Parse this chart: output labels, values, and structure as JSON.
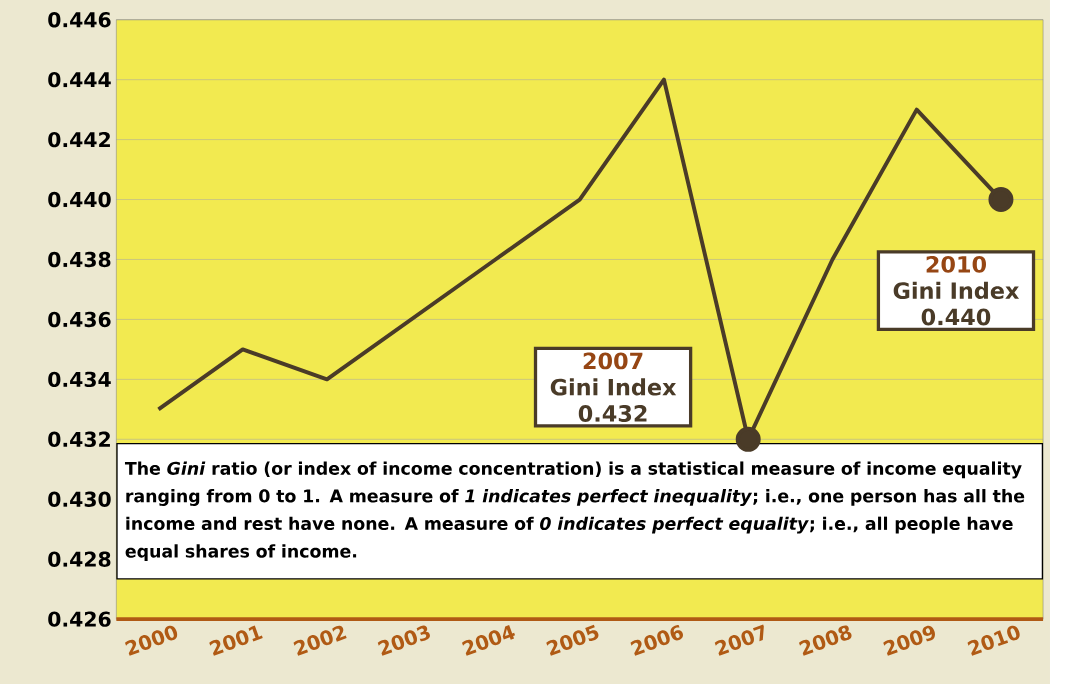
{
  "chart_data": {
    "type": "line",
    "categories": [
      "2000",
      "2001",
      "2002",
      "2003",
      "2004",
      "2005",
      "2006",
      "2007",
      "2008",
      "2009",
      "2010"
    ],
    "series": [
      {
        "color": "#4a3b28",
        "values": [
          0.433,
          0.435,
          0.434,
          0.436,
          0.438,
          0.44,
          0.444,
          0.432,
          0.438,
          0.443,
          0.44
        ]
      },
      {
        "type": "scatter",
        "color": "#4a3b28",
        "values": [
          null,
          null,
          null,
          null,
          null,
          null,
          null,
          0.432,
          null,
          null,
          0.44
        ]
      }
    ],
    "ylim": [
      0.426,
      0.446
    ],
    "yticks": [
      {
        "value": 0.426,
        "label": "0.426"
      },
      {
        "value": 0.428,
        "label": "0.428"
      },
      {
        "value": 0.43,
        "label": "0.430"
      },
      {
        "value": 0.432,
        "label": "0.432"
      },
      {
        "value": 0.434,
        "label": "0.434"
      },
      {
        "value": 0.436,
        "label": "0.436"
      },
      {
        "value": 0.438,
        "label": "0.438"
      },
      {
        "value": 0.44,
        "label": "0.440"
      },
      {
        "value": 0.442,
        "label": "0.442"
      },
      {
        "value": 0.444,
        "label": "0.444"
      },
      {
        "value": 0.446,
        "label": "0.446"
      }
    ],
    "grid": "y",
    "marker": "none",
    "line_style": "solid",
    "annotations": [
      "2007",
      "Gini Index",
      "0.432",
      "2010",
      "Gini Index",
      "0.440",
      "The *Gini* ratio (or index of income concentration) is a statistical measure of income equality ranging from 0 to 1. A measure of *1 indicates perfect inequality*; i.e., one person has all the income and rest have none. A measure of *0 indicates perfect equality*; i.e., all people have equal shares of income."
    ]
  }
}
